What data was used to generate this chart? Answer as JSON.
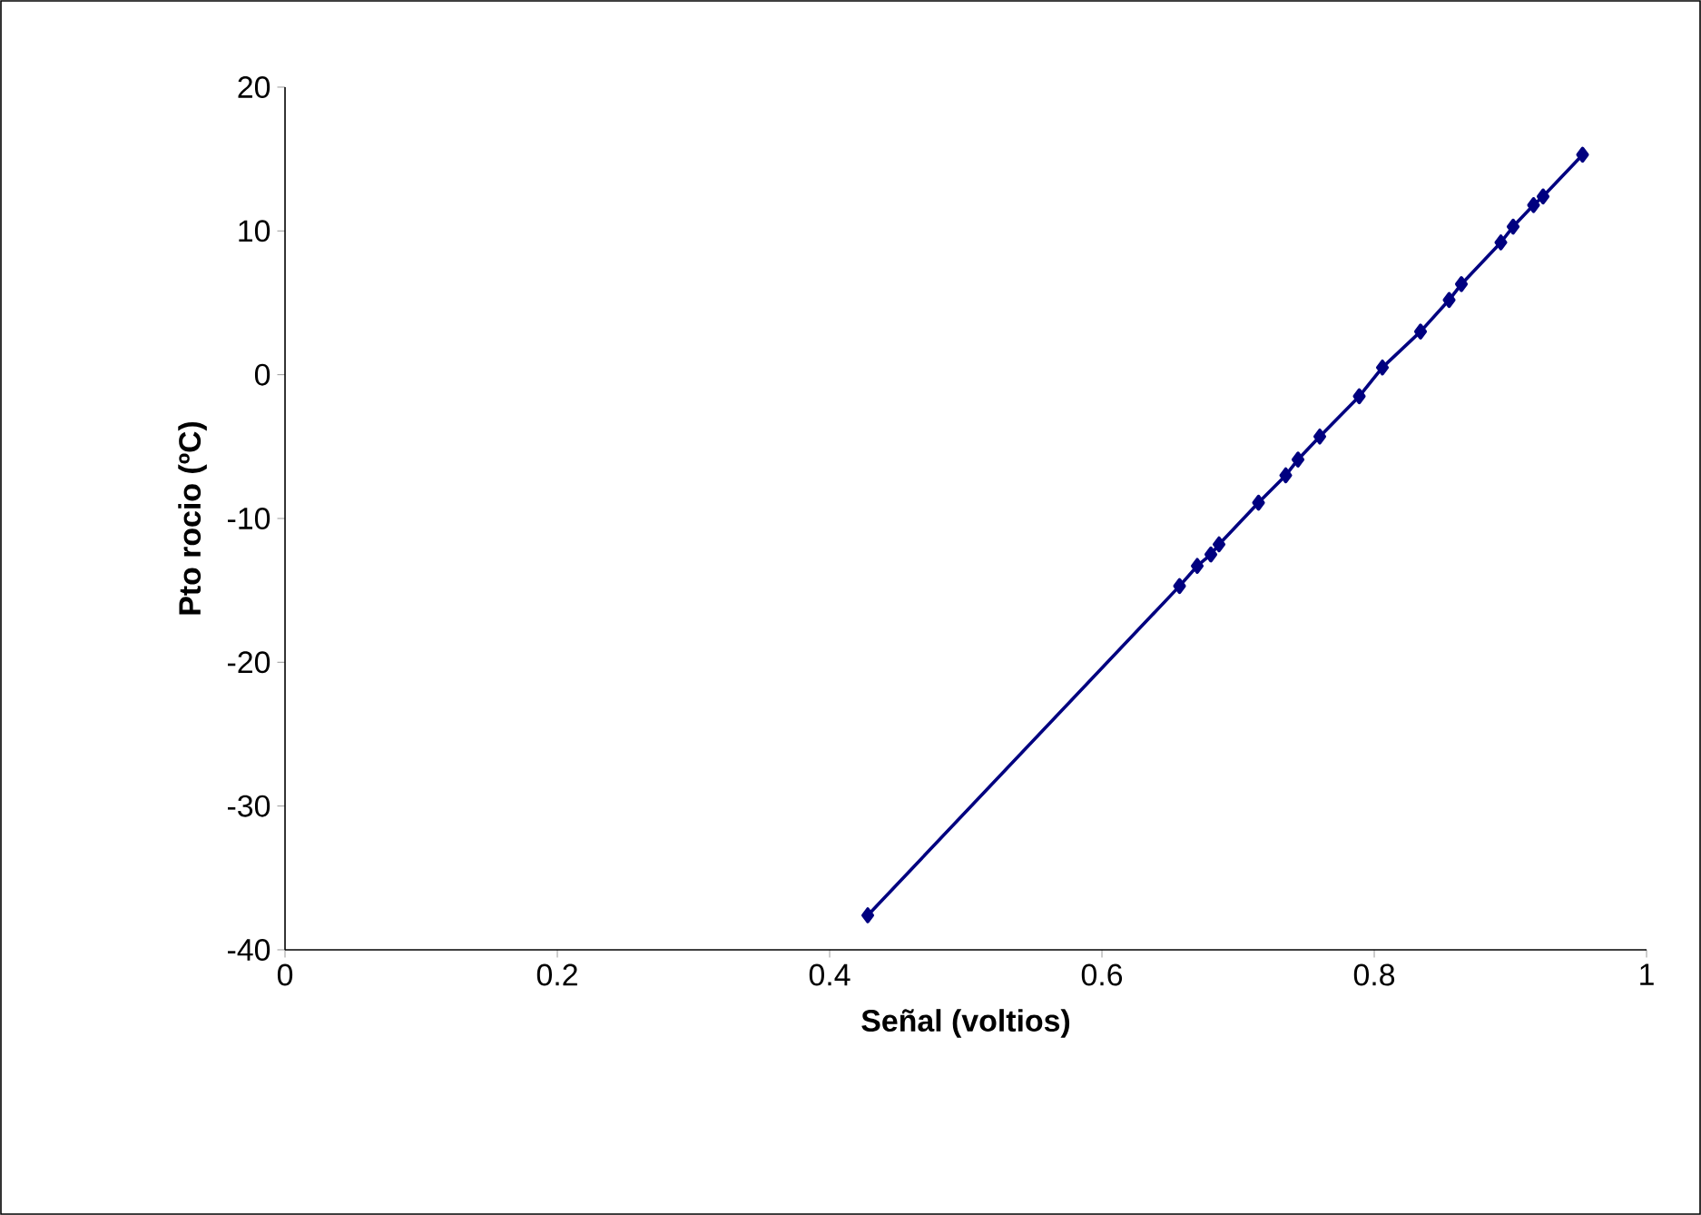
{
  "chart_data": {
    "type": "line",
    "xlabel": "Señal (voltios)",
    "ylabel": "Pto rocio (ºC)",
    "x": [
      0.428,
      0.657,
      0.67,
      0.68,
      0.686,
      0.715,
      0.735,
      0.744,
      0.76,
      0.789,
      0.806,
      0.834,
      0.855,
      0.864,
      0.893,
      0.902,
      0.917,
      0.924,
      0.953
    ],
    "series": [
      {
        "color": "#000080",
        "values": [
          -37.6,
          -14.7,
          -13.3,
          -12.5,
          -11.8,
          -8.9,
          -7.0,
          -5.9,
          -4.3,
          -1.5,
          0.5,
          3.0,
          5.2,
          6.3,
          9.2,
          10.3,
          11.8,
          12.4,
          15.3
        ]
      }
    ],
    "xlim": [
      0,
      1
    ],
    "ylim": [
      -40,
      20
    ],
    "xticks": [
      0,
      0.2,
      0.4,
      0.6,
      0.8,
      1
    ],
    "yticks": [
      -40,
      -30,
      -20,
      -10,
      0,
      10,
      20
    ],
    "marker": "diamond",
    "line_style": "solid"
  }
}
